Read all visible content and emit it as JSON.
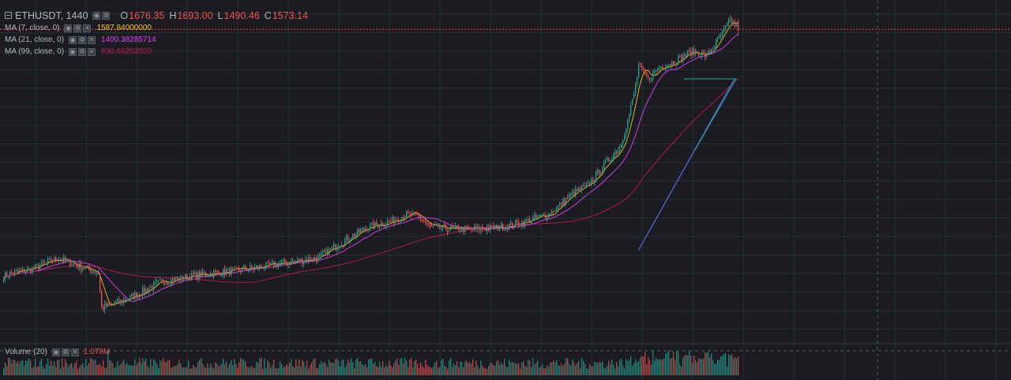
{
  "symbol": "ETHUSDT, 1440",
  "ohlc": {
    "o_label": "O",
    "o": "1676.35",
    "h_label": "H",
    "h": "1693.00",
    "l_label": "L",
    "l": "1490.46",
    "c_label": "C",
    "c": "1573.14"
  },
  "indicators": [
    {
      "name": "MA (7, close, 0)",
      "value": "1587.84000000",
      "color": "#f5c518"
    },
    {
      "name": "MA (21, close, 0)",
      "value": "1400.38285714",
      "color": "#e040fb"
    },
    {
      "name": "MA (99, close, 0)",
      "value": "830.66202020",
      "color": "#c2185b"
    }
  ],
  "volume": {
    "name": "Volume (20)",
    "value": "1.078M"
  },
  "colors": {
    "up": "#26a69a",
    "down": "#ef5350",
    "bg": "#1b1c22",
    "grid": "#2a2d36",
    "current_price_line": "#ef5350"
  },
  "chart_data": {
    "type": "candlestick",
    "symbol": "ETHUSDT",
    "interval": "1440",
    "last": {
      "open": 1676.35,
      "high": 1693.0,
      "low": 1490.46,
      "close": 1573.14
    },
    "price_range": [
      150,
      1750
    ],
    "trend": [
      [
        0,
        225
      ],
      [
        20,
        240
      ],
      [
        35,
        258
      ],
      [
        45,
        246
      ],
      [
        60,
        230
      ],
      [
        62,
        175
      ],
      [
        70,
        180
      ],
      [
        85,
        195
      ],
      [
        100,
        215
      ],
      [
        120,
        225
      ],
      [
        140,
        232
      ],
      [
        160,
        240
      ],
      [
        180,
        250
      ],
      [
        200,
        260
      ],
      [
        210,
        285
      ],
      [
        230,
        330
      ],
      [
        245,
        345
      ],
      [
        255,
        365
      ],
      [
        262,
        360
      ],
      [
        270,
        330
      ],
      [
        285,
        325
      ],
      [
        300,
        325
      ],
      [
        315,
        330
      ],
      [
        330,
        345
      ],
      [
        345,
        365
      ],
      [
        360,
        430
      ],
      [
        370,
        460
      ],
      [
        382,
        555
      ],
      [
        390,
        620
      ],
      [
        395,
        760
      ],
      [
        400,
        1000
      ],
      [
        402,
        1180
      ],
      [
        408,
        1060
      ],
      [
        415,
        1170
      ],
      [
        425,
        1220
      ],
      [
        435,
        1320
      ],
      [
        445,
        1280
      ],
      [
        455,
        1520
      ],
      [
        460,
        1690
      ],
      [
        465,
        1573
      ]
    ],
    "moving_averages": [
      {
        "name": "MA (7, close, 0)",
        "last": 1587.84
      },
      {
        "name": "MA (21, close, 0)",
        "last": 1400.38285714
      },
      {
        "name": "MA (99, close, 0)",
        "last": 830.6620202
      }
    ],
    "volume_last": "1.078M",
    "grid": true
  }
}
